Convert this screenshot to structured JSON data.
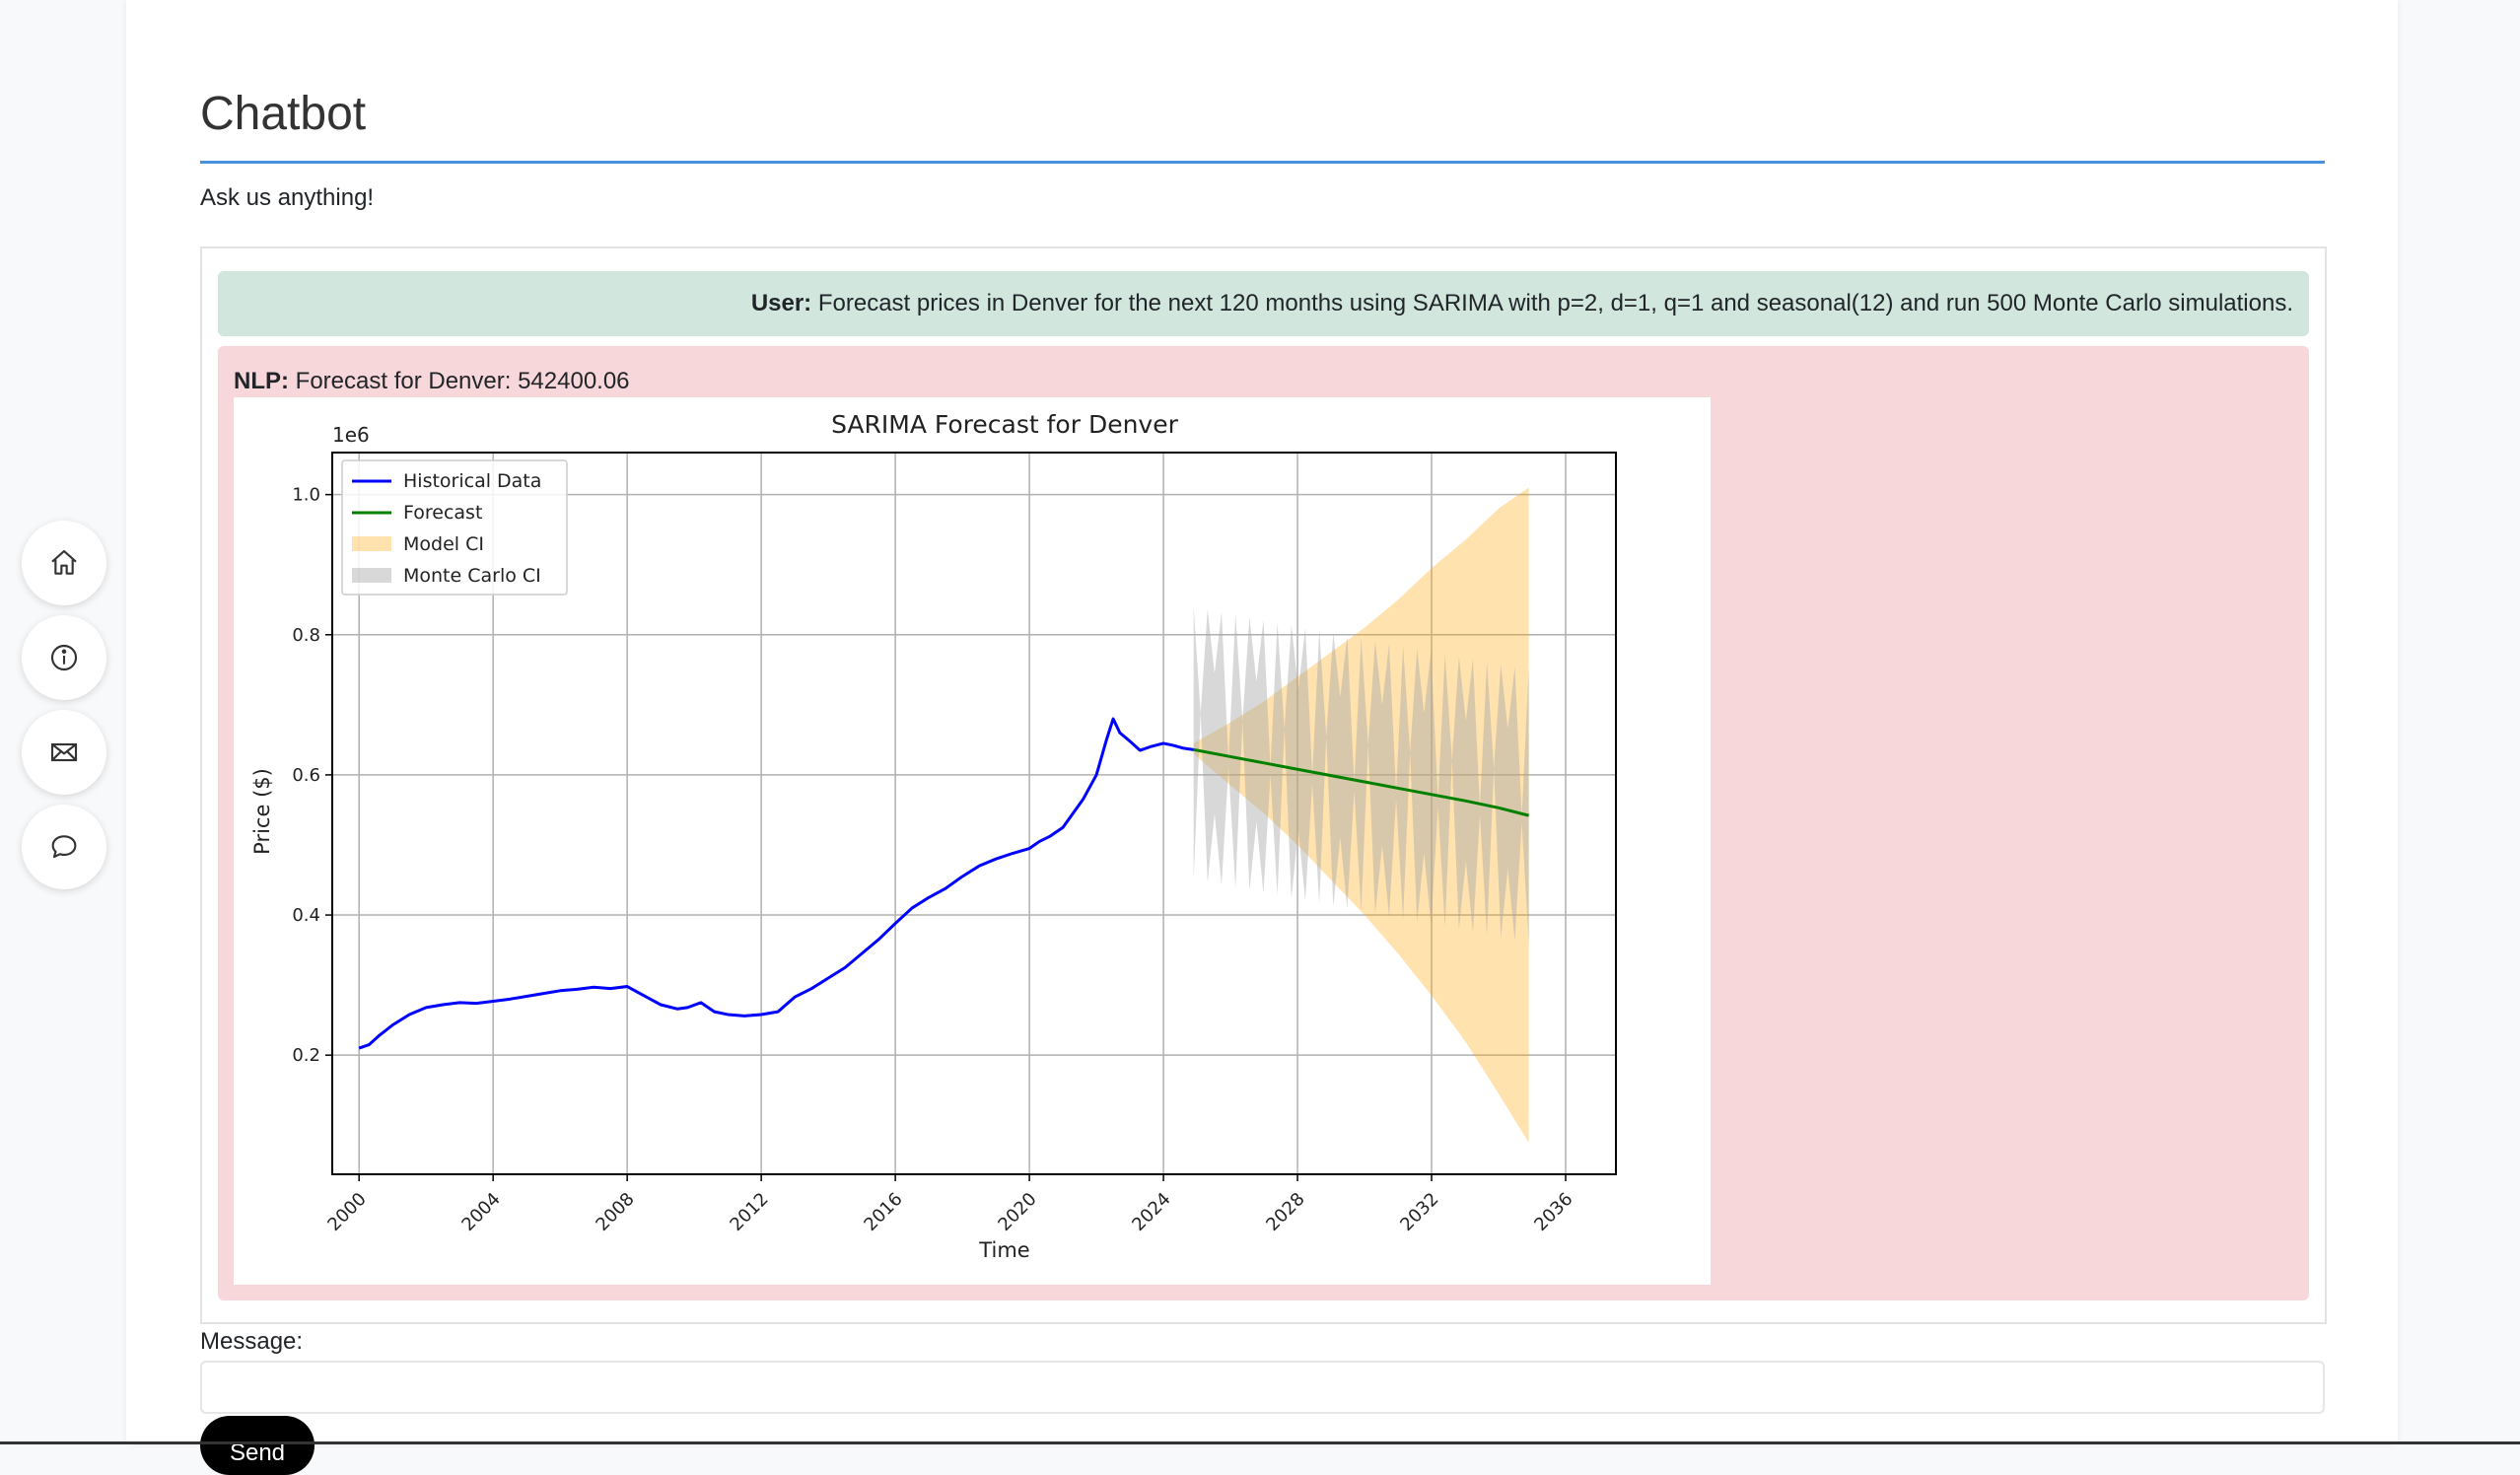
{
  "page": {
    "title": "Chatbot",
    "subtitle": "Ask us anything!"
  },
  "side_nav": [
    {
      "icon": "home-icon",
      "label": "Home"
    },
    {
      "icon": "info-icon",
      "label": "About"
    },
    {
      "icon": "mail-icon",
      "label": "Contact"
    },
    {
      "icon": "chat-icon",
      "label": "Chat"
    }
  ],
  "messages": {
    "user": {
      "speaker": "User:",
      "text": "Forecast prices in Denver for the next 120 months using SARIMA with p=2, d=1, q=1 and seasonal(12) and run 500 Monte Carlo simulations."
    },
    "bot": {
      "speaker": "NLP:",
      "text": "Forecast for Denver: 542400.06"
    }
  },
  "form": {
    "message_label": "Message:",
    "message_value": "",
    "send_label": "Send"
  },
  "colors": {
    "user_bubble": "#d1e7dd",
    "bot_bubble": "#f8d7da",
    "title_rule": "#4a90e2",
    "historical": "#0000ff",
    "forecast": "#008000",
    "model_ci": "#ffa500",
    "monte_carlo_ci": "#a9a9a9"
  },
  "chart_data": {
    "type": "line",
    "title": "SARIMA Forecast for Denver",
    "xlabel": "Time",
    "ylabel": "Price ($)",
    "y_multiplier_label": "1e6",
    "xlim": [
      1999.2,
      2037.5
    ],
    "ylim": [
      0.03,
      1.06
    ],
    "x_ticks": [
      2000,
      2004,
      2008,
      2012,
      2016,
      2020,
      2024,
      2028,
      2032,
      2036
    ],
    "y_ticks": [
      0.2,
      0.4,
      0.6,
      0.8,
      1.0
    ],
    "grid": true,
    "legend_position": "top-left",
    "legend": [
      "Historical Data",
      "Forecast",
      "Model CI",
      "Monte Carlo CI"
    ],
    "series": [
      {
        "name": "Historical Data",
        "color": "#0000ff",
        "x": [
          2000.0,
          2000.3,
          2000.6,
          2001.0,
          2001.5,
          2002.0,
          2002.5,
          2003.0,
          2003.5,
          2004.0,
          2004.5,
          2005.0,
          2005.5,
          2006.0,
          2006.5,
          2007.0,
          2007.5,
          2008.0,
          2008.5,
          2009.0,
          2009.5,
          2009.8,
          2010.2,
          2010.6,
          2011.0,
          2011.5,
          2012.0,
          2012.5,
          2013.0,
          2013.5,
          2014.0,
          2014.5,
          2015.0,
          2015.5,
          2016.0,
          2016.5,
          2017.0,
          2017.5,
          2018.0,
          2018.5,
          2019.0,
          2019.5,
          2020.0,
          2020.3,
          2020.6,
          2021.0,
          2021.3,
          2021.6,
          2022.0,
          2022.3,
          2022.5,
          2022.7,
          2023.0,
          2023.3,
          2023.6,
          2024.0,
          2024.3,
          2024.6,
          2024.9
        ],
        "y": [
          0.21,
          0.215,
          0.228,
          0.243,
          0.258,
          0.268,
          0.272,
          0.275,
          0.274,
          0.277,
          0.28,
          0.284,
          0.288,
          0.292,
          0.294,
          0.297,
          0.295,
          0.298,
          0.285,
          0.272,
          0.266,
          0.268,
          0.275,
          0.262,
          0.258,
          0.256,
          0.258,
          0.262,
          0.283,
          0.295,
          0.31,
          0.325,
          0.345,
          0.365,
          0.388,
          0.41,
          0.425,
          0.438,
          0.455,
          0.47,
          0.48,
          0.488,
          0.495,
          0.505,
          0.512,
          0.525,
          0.545,
          0.565,
          0.6,
          0.65,
          0.68,
          0.66,
          0.648,
          0.635,
          0.64,
          0.645,
          0.642,
          0.638,
          0.636
        ]
      },
      {
        "name": "Forecast",
        "color": "#008000",
        "x": [
          2024.9,
          2026.0,
          2027.0,
          2028.0,
          2029.0,
          2030.0,
          2031.0,
          2032.0,
          2033.0,
          2034.0,
          2034.9
        ],
        "y": [
          0.636,
          0.626,
          0.617,
          0.608,
          0.599,
          0.59,
          0.581,
          0.572,
          0.563,
          0.553,
          0.542
        ]
      }
    ],
    "model_ci": {
      "name": "Model CI",
      "x": [
        2024.9,
        2026.0,
        2027.0,
        2028.0,
        2029.0,
        2030.0,
        2031.0,
        2032.0,
        2033.0,
        2034.0,
        2034.9
      ],
      "lower": [
        0.63,
        0.585,
        0.545,
        0.5,
        0.45,
        0.4,
        0.345,
        0.285,
        0.22,
        0.145,
        0.075
      ],
      "upper": [
        0.645,
        0.675,
        0.705,
        0.74,
        0.775,
        0.81,
        0.85,
        0.895,
        0.935,
        0.98,
        1.01
      ]
    },
    "monte_carlo_ci": {
      "name": "Monte Carlo CI",
      "x_range": [
        2024.9,
        2034.9
      ],
      "lower_start": 0.45,
      "lower_end": 0.36,
      "upper_start": 0.84,
      "upper_end": 0.75
    }
  }
}
